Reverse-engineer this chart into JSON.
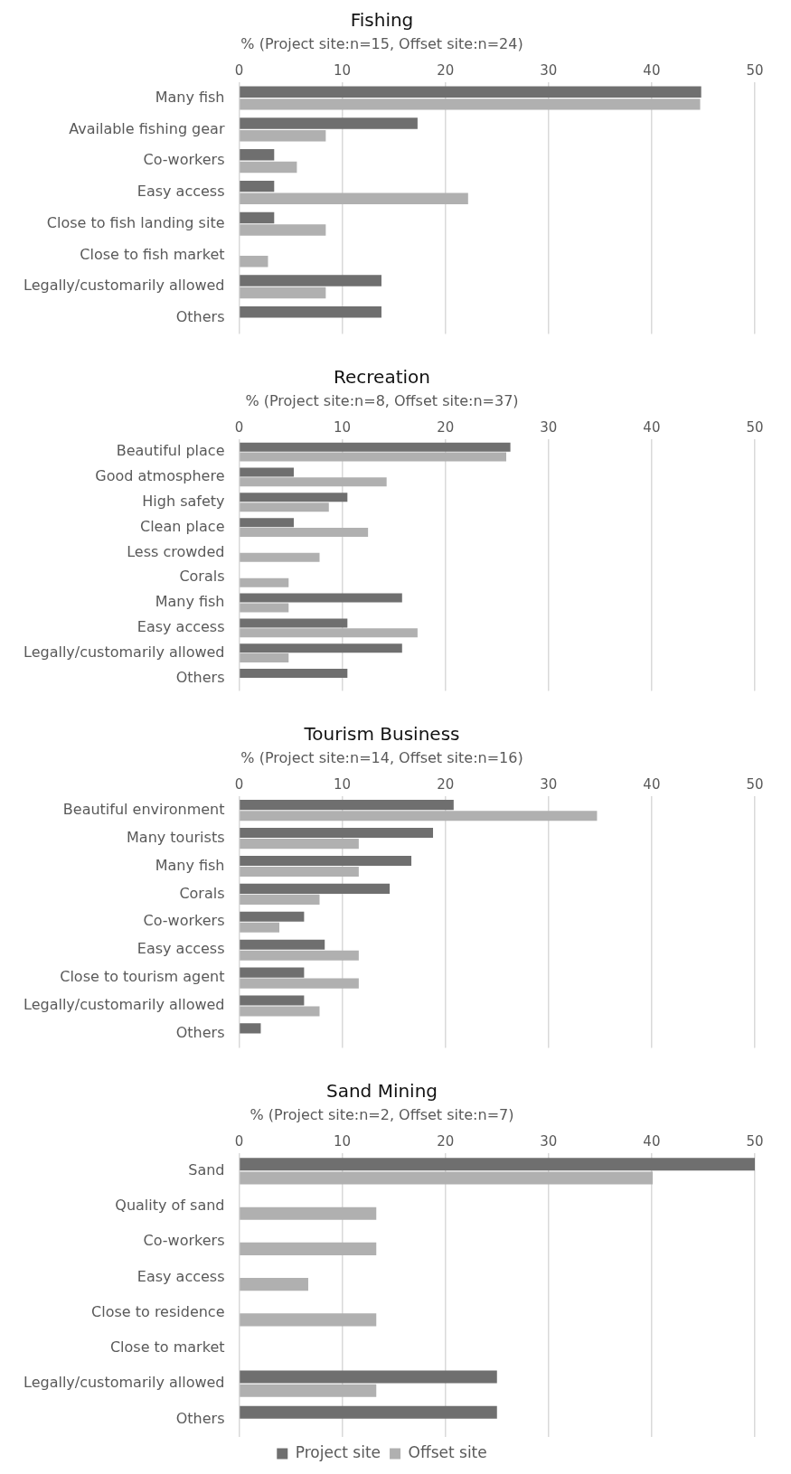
{
  "chart_data": [
    {
      "type": "bar",
      "orientation": "horizontal",
      "title": "Fishing",
      "subtitle": "% (Project site:n=15, Offset site:n=24)",
      "categories": [
        "Many fish",
        "Available fishing gear",
        "Co-workers",
        "Easy access",
        "Close to fish landing site",
        "Close to fish market",
        "Legally/customarily allowed",
        "Others"
      ],
      "series": [
        {
          "color": "#6f6f6f",
          "values": [
            44.8,
            17.3,
            3.4,
            3.4,
            3.4,
            null,
            13.8,
            13.8
          ]
        },
        {
          "color": "#b0b0b0",
          "values": [
            44.7,
            8.4,
            5.6,
            22.2,
            8.4,
            2.8,
            8.4,
            null
          ]
        }
      ],
      "xlim": [
        0,
        50
      ],
      "xticks": [
        0,
        10,
        20,
        30,
        40,
        50
      ],
      "grid": "x",
      "legend": false
    },
    {
      "type": "bar",
      "orientation": "horizontal",
      "title": "Recreation",
      "subtitle": "% (Project site:n=8, Offset site:n=37)",
      "categories": [
        "Beautiful place",
        "Good atmosphere",
        "High safety",
        "Clean place",
        "Less crowded",
        "Corals",
        "Many fish",
        "Easy access",
        "Legally/customarily allowed",
        "Others"
      ],
      "series": [
        {
          "color": "#6f6f6f",
          "values": [
            26.3,
            5.3,
            10.5,
            5.3,
            null,
            null,
            15.8,
            10.5,
            15.8,
            10.5
          ]
        },
        {
          "color": "#b0b0b0",
          "values": [
            25.9,
            14.3,
            8.7,
            12.5,
            7.8,
            4.8,
            4.8,
            17.3,
            4.8,
            null
          ]
        }
      ],
      "xlim": [
        0,
        50
      ],
      "xticks": [
        0,
        10,
        20,
        30,
        40,
        50
      ],
      "grid": "x",
      "legend": false
    },
    {
      "type": "bar",
      "orientation": "horizontal",
      "title": "Tourism Business",
      "subtitle": "% (Project site:n=14, Offset site:n=16)",
      "categories": [
        "Beautiful environment",
        "Many tourists",
        "Many fish",
        "Corals",
        "Co-workers",
        "Easy access",
        "Close to tourism agent",
        "Legally/customarily allowed",
        "Others"
      ],
      "series": [
        {
          "color": "#6f6f6f",
          "values": [
            20.8,
            18.8,
            16.7,
            14.6,
            6.3,
            8.3,
            6.3,
            6.3,
            2.1
          ]
        },
        {
          "color": "#b0b0b0",
          "values": [
            34.7,
            11.6,
            11.6,
            7.8,
            3.9,
            11.6,
            11.6,
            7.8,
            null
          ]
        }
      ],
      "xlim": [
        0,
        50
      ],
      "xticks": [
        0,
        10,
        20,
        30,
        40,
        50
      ],
      "grid": "x",
      "legend": false
    },
    {
      "type": "bar",
      "orientation": "horizontal",
      "title": "Sand Mining",
      "subtitle": "% (Project site:n=2, Offset site:n=7)",
      "categories": [
        "Sand",
        "Quality of sand",
        "Co-workers",
        "Easy access",
        "Close to residence",
        "Close to market",
        "Legally/customarily allowed",
        "Others"
      ],
      "series": [
        {
          "name": "Project site",
          "color": "#6f6f6f",
          "values": [
            50,
            null,
            null,
            null,
            null,
            null,
            25,
            25
          ]
        },
        {
          "name": "Offset site",
          "color": "#b0b0b0",
          "values": [
            40.1,
            13.3,
            13.3,
            6.7,
            13.3,
            null,
            13.3,
            null
          ]
        }
      ],
      "xlim": [
        0,
        50
      ],
      "xticks": [
        0,
        10,
        20,
        30,
        40,
        50
      ],
      "grid": "x",
      "legend": "bottom"
    }
  ]
}
